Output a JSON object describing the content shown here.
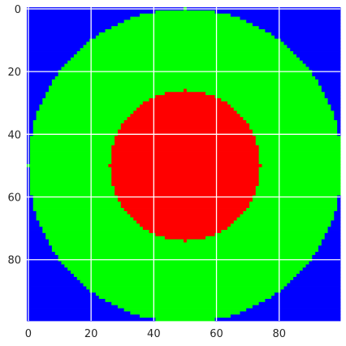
{
  "chart_data": {
    "type": "heatmap",
    "grid_size": [
      100,
      100
    ],
    "x_range": [
      -0.5,
      99.5
    ],
    "y_range": [
      99.5,
      -0.5
    ],
    "y_axis_direction": "downward",
    "x_ticks": [
      0,
      20,
      40,
      60,
      80
    ],
    "y_ticks": [
      0,
      20,
      40,
      60,
      80
    ],
    "grid": true,
    "grid_color": "#ffffff",
    "regions": [
      {
        "label": "outer",
        "color": "#0000ff",
        "condition": "distance from center > 50"
      },
      {
        "label": "ring",
        "color": "#00ff00",
        "condition": "24 < distance from center <= 50"
      },
      {
        "label": "core",
        "color": "#ff0000",
        "condition": "distance from center <= 24"
      }
    ],
    "center": [
      50,
      50
    ],
    "outer_radius": 50,
    "inner_radius": 24
  }
}
